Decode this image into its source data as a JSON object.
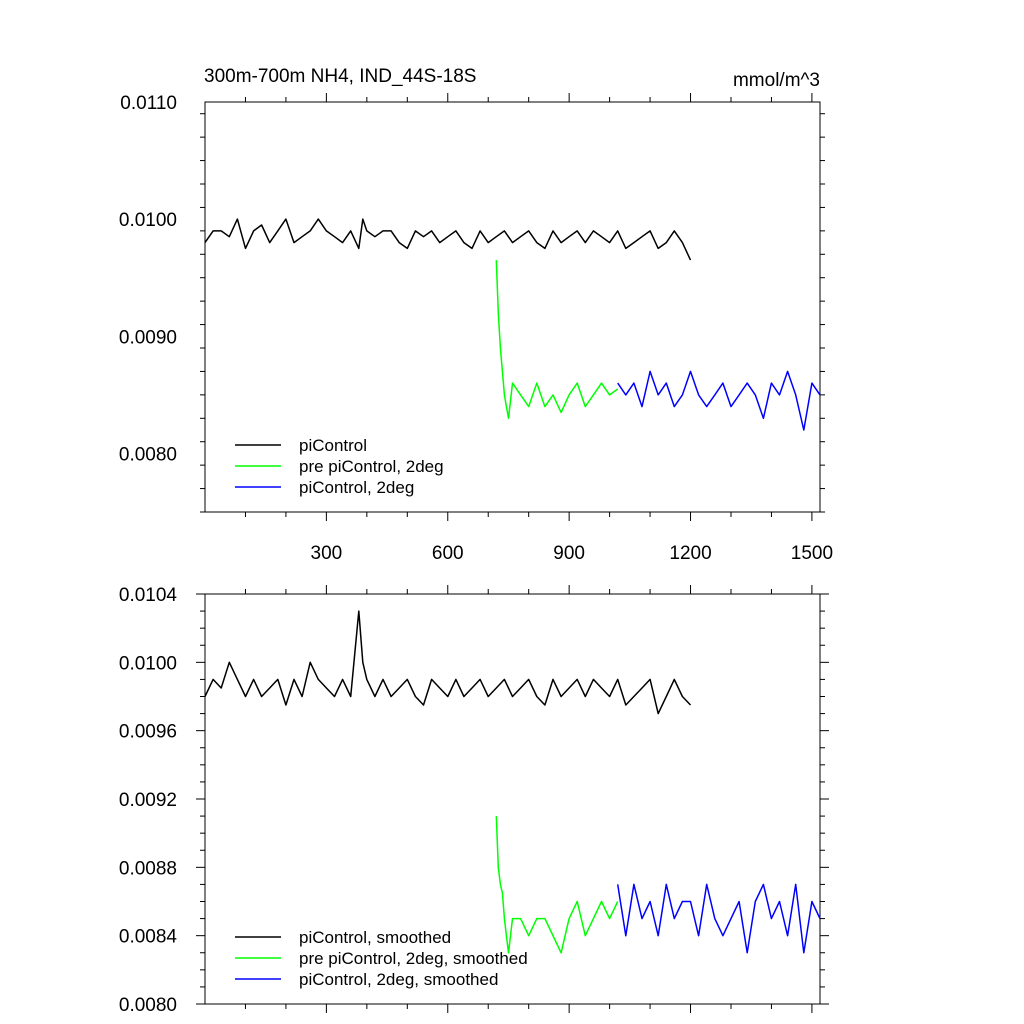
{
  "header": {
    "left": "300m-700m NH4, IND_44S-18S",
    "right": "mmol/m^3"
  },
  "chart_data": [
    {
      "type": "line",
      "title": "",
      "xlim": [
        0,
        1520
      ],
      "ylim": [
        0.0075,
        0.011
      ],
      "xticks": [
        300,
        600,
        900,
        1200,
        1500
      ],
      "xtick_labels": [
        "300",
        "600",
        "900",
        "1200",
        "1500"
      ],
      "yticks": [
        0.008,
        0.009,
        0.01,
        0.011
      ],
      "ytick_labels": [
        "0.0080",
        "0.0090",
        "0.0100",
        "0.0110"
      ],
      "legend_position": "bottom-left",
      "series": [
        {
          "name": "piControl",
          "color": "#000000",
          "x": [
            0,
            20,
            40,
            60,
            80,
            100,
            120,
            140,
            160,
            180,
            200,
            220,
            240,
            260,
            280,
            300,
            320,
            340,
            360,
            380,
            390,
            400,
            420,
            440,
            460,
            480,
            500,
            520,
            540,
            560,
            580,
            600,
            620,
            640,
            660,
            680,
            700,
            720,
            740,
            760,
            780,
            800,
            820,
            840,
            860,
            880,
            900,
            920,
            940,
            960,
            980,
            1000,
            1020,
            1040,
            1060,
            1080,
            1100,
            1120,
            1140,
            1160,
            1180,
            1200
          ],
          "y": [
            0.0098,
            0.0099,
            0.0099,
            0.00985,
            0.01,
            0.00975,
            0.0099,
            0.00995,
            0.0098,
            0.0099,
            0.01,
            0.0098,
            0.00985,
            0.0099,
            0.01,
            0.0099,
            0.00985,
            0.0098,
            0.0099,
            0.00975,
            0.01,
            0.0099,
            0.00985,
            0.0099,
            0.0099,
            0.0098,
            0.00975,
            0.0099,
            0.00985,
            0.0099,
            0.0098,
            0.00985,
            0.0099,
            0.0098,
            0.00975,
            0.0099,
            0.0098,
            0.00985,
            0.0099,
            0.0098,
            0.00985,
            0.0099,
            0.0098,
            0.00975,
            0.0099,
            0.0098,
            0.00985,
            0.0099,
            0.0098,
            0.0099,
            0.00985,
            0.0098,
            0.0099,
            0.00975,
            0.0098,
            0.00985,
            0.0099,
            0.00975,
            0.0098,
            0.0099,
            0.0098,
            0.00965
          ]
        },
        {
          "name": "pre piControl, 2deg",
          "color": "#00ff00",
          "x": [
            720,
            725,
            730,
            735,
            740,
            745,
            750,
            760,
            780,
            800,
            820,
            840,
            860,
            880,
            900,
            920,
            940,
            960,
            980,
            1000,
            1020
          ],
          "y": [
            0.00965,
            0.0092,
            0.0089,
            0.0087,
            0.0085,
            0.0084,
            0.0083,
            0.0086,
            0.0085,
            0.0084,
            0.0086,
            0.0084,
            0.0085,
            0.00835,
            0.0085,
            0.0086,
            0.0084,
            0.0085,
            0.0086,
            0.0085,
            0.00855
          ]
        },
        {
          "name": "piControl, 2deg",
          "color": "#0000ff",
          "x": [
            1020,
            1040,
            1060,
            1080,
            1100,
            1120,
            1140,
            1160,
            1180,
            1200,
            1220,
            1240,
            1260,
            1280,
            1300,
            1320,
            1340,
            1360,
            1380,
            1400,
            1420,
            1440,
            1460,
            1480,
            1500,
            1520
          ],
          "y": [
            0.0086,
            0.0085,
            0.0086,
            0.0084,
            0.0087,
            0.0085,
            0.0086,
            0.0084,
            0.0085,
            0.0087,
            0.0085,
            0.0084,
            0.0085,
            0.0086,
            0.0084,
            0.0085,
            0.0086,
            0.0085,
            0.0083,
            0.0086,
            0.0085,
            0.0087,
            0.0085,
            0.0082,
            0.0086,
            0.0085
          ]
        }
      ]
    },
    {
      "type": "line",
      "title": "",
      "xlim": [
        0,
        1520
      ],
      "ylim": [
        0.008,
        0.0104
      ],
      "xticks": [
        300,
        600,
        900,
        1200,
        1500
      ],
      "xtick_labels": [],
      "yticks": [
        0.008,
        0.0084,
        0.0088,
        0.0092,
        0.0096,
        0.01,
        0.0104
      ],
      "ytick_labels": [
        "0.0080",
        "0.0084",
        "0.0088",
        "0.0092",
        "0.0096",
        "0.0100",
        "0.0104"
      ],
      "legend_position": "bottom-left",
      "series": [
        {
          "name": "piControl, smoothed",
          "color": "#000000",
          "x": [
            0,
            20,
            40,
            60,
            80,
            100,
            120,
            140,
            160,
            180,
            200,
            220,
            240,
            260,
            280,
            300,
            320,
            340,
            360,
            380,
            390,
            400,
            420,
            440,
            460,
            480,
            500,
            520,
            540,
            560,
            580,
            600,
            620,
            640,
            660,
            680,
            700,
            720,
            740,
            760,
            780,
            800,
            820,
            840,
            860,
            880,
            900,
            920,
            940,
            960,
            980,
            1000,
            1020,
            1040,
            1060,
            1080,
            1100,
            1120,
            1140,
            1160,
            1180,
            1200
          ],
          "y": [
            0.0098,
            0.0099,
            0.00985,
            0.01,
            0.0099,
            0.0098,
            0.0099,
            0.0098,
            0.00985,
            0.0099,
            0.00975,
            0.0099,
            0.0098,
            0.01,
            0.0099,
            0.00985,
            0.0098,
            0.0099,
            0.0098,
            0.0103,
            0.01,
            0.0099,
            0.0098,
            0.0099,
            0.0098,
            0.00985,
            0.0099,
            0.0098,
            0.00975,
            0.0099,
            0.00985,
            0.0098,
            0.0099,
            0.0098,
            0.00985,
            0.0099,
            0.0098,
            0.00985,
            0.0099,
            0.0098,
            0.00985,
            0.0099,
            0.0098,
            0.00975,
            0.0099,
            0.0098,
            0.00985,
            0.0099,
            0.0098,
            0.0099,
            0.00985,
            0.0098,
            0.0099,
            0.00975,
            0.0098,
            0.00985,
            0.0099,
            0.0097,
            0.0098,
            0.0099,
            0.0098,
            0.00975
          ]
        },
        {
          "name": "pre piControl, 2deg, smoothed",
          "color": "#00ff00",
          "x": [
            720,
            725,
            730,
            735,
            740,
            745,
            750,
            760,
            780,
            800,
            820,
            840,
            860,
            880,
            900,
            920,
            940,
            960,
            980,
            1000,
            1020
          ],
          "y": [
            0.0091,
            0.0088,
            0.0087,
            0.00865,
            0.0085,
            0.0084,
            0.0083,
            0.0085,
            0.0085,
            0.0084,
            0.0085,
            0.0085,
            0.0084,
            0.0083,
            0.0085,
            0.0086,
            0.0084,
            0.0085,
            0.0086,
            0.0085,
            0.0086
          ]
        },
        {
          "name": "piControl, 2deg, smoothed",
          "color": "#0000ff",
          "x": [
            1020,
            1040,
            1060,
            1080,
            1100,
            1120,
            1140,
            1160,
            1180,
            1200,
            1220,
            1240,
            1260,
            1280,
            1300,
            1320,
            1340,
            1360,
            1380,
            1400,
            1420,
            1440,
            1460,
            1480,
            1500,
            1520
          ],
          "y": [
            0.0087,
            0.0084,
            0.0087,
            0.0085,
            0.0086,
            0.0084,
            0.0087,
            0.0085,
            0.0086,
            0.0086,
            0.0084,
            0.0087,
            0.0085,
            0.0084,
            0.0085,
            0.0086,
            0.0083,
            0.0086,
            0.0087,
            0.0085,
            0.0086,
            0.0084,
            0.0087,
            0.0083,
            0.0086,
            0.0085
          ]
        }
      ]
    }
  ]
}
